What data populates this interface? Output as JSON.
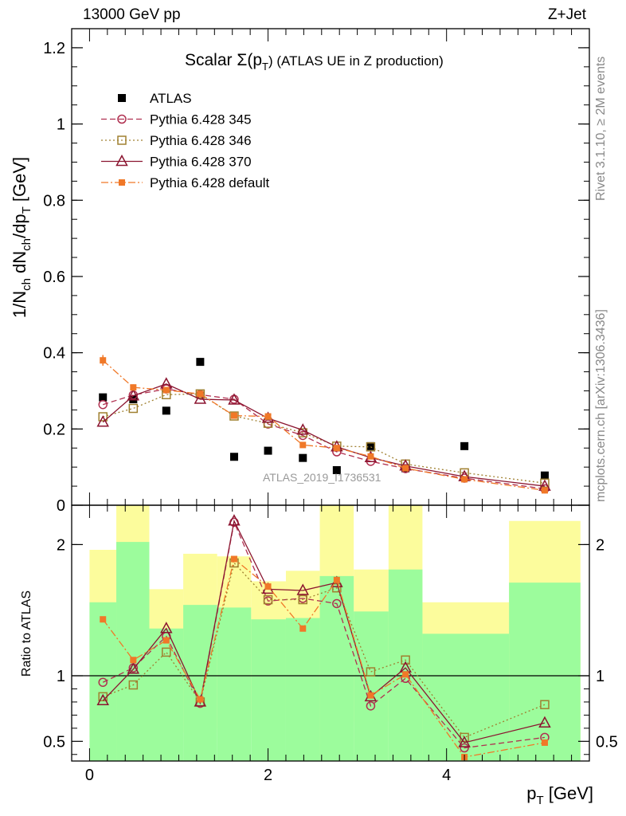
{
  "header": {
    "energy_label": "13000 GeV pp",
    "process_label": "Z+Jet"
  },
  "side_notes": {
    "rivet": "Rivet 3.1.10, ≥ 2M events",
    "mcplots": "mcplots.cern.ch [arXiv:1306.3436]"
  },
  "chart_data": [
    {
      "type": "scatter",
      "panel": "main",
      "title_main": "Scalar Σ(p",
      "title_sub": "T",
      "title_rest": ") (ATLAS UE in Z production)",
      "ylabel": "1/N_ch dN_ch/dp_T [GeV]",
      "watermark": "ATLAS_2019_I1736531",
      "xlim": [
        -0.2,
        5.6
      ],
      "ylim": [
        0,
        1.25
      ],
      "yticks": [
        0,
        0.2,
        0.4,
        0.6,
        0.8,
        1,
        1.2
      ],
      "ytick_labels": [
        "0",
        "0.2",
        "0.4",
        "0.6",
        "0.8",
        "1",
        "1.2"
      ],
      "x": [
        0.15,
        0.49,
        0.86,
        1.24,
        1.62,
        2.0,
        2.39,
        2.77,
        3.15,
        3.54,
        4.2,
        5.1
      ],
      "x_bin_edges": [
        0,
        0.3,
        0.67,
        1.05,
        1.43,
        1.81,
        2.2,
        2.58,
        2.96,
        3.35,
        3.73,
        4.7,
        5.5
      ],
      "legend_position": "top-left",
      "series": [
        {
          "name": "ATLAS",
          "color": "#000000",
          "marker": "square",
          "line": "none",
          "values": [
            0.283,
            0.278,
            0.248,
            0.376,
            0.127,
            0.143,
            0.124,
            0.092,
            0.155,
            0.097,
            0.155,
            0.078
          ]
        },
        {
          "name": "Pythia 6.428 345",
          "color": "#b03050",
          "marker": "circle-open",
          "line": "dashed",
          "values": [
            0.264,
            0.289,
            0.305,
            0.29,
            0.278,
            0.213,
            0.183,
            0.14,
            0.115,
            0.096,
            0.071,
            0.043
          ]
        },
        {
          "name": "Pythia 6.428 346",
          "color": "#a08030",
          "marker": "square-open",
          "line": "dotted",
          "values": [
            0.232,
            0.254,
            0.29,
            0.292,
            0.234,
            0.215,
            0.19,
            0.155,
            0.153,
            0.108,
            0.085,
            0.058
          ]
        },
        {
          "name": "Pythia 6.428 370",
          "color": "#8b1530",
          "marker": "triangle-open",
          "line": "solid",
          "values": [
            0.218,
            0.287,
            0.318,
            0.278,
            0.276,
            0.228,
            0.197,
            0.153,
            0.125,
            0.103,
            0.075,
            0.05
          ]
        },
        {
          "name": "Pythia 6.428 default",
          "color": "#f07828",
          "marker": "square-filled",
          "line": "dashdot",
          "values": [
            0.38,
            0.309,
            0.302,
            0.292,
            0.235,
            0.233,
            0.158,
            0.15,
            0.128,
            0.097,
            0.068,
            0.039
          ],
          "errors": [
            0.014,
            0.008,
            0.008,
            0.008,
            0.007,
            0.007,
            0.005,
            0.005,
            0.005,
            0.004,
            0.003,
            0.003
          ]
        }
      ]
    },
    {
      "type": "scatter",
      "panel": "ratio",
      "ylabel": "Ratio to ATLAS",
      "xlabel": "p_T [GeV]",
      "xlim": [
        -0.2,
        5.6
      ],
      "ylim": [
        0.35,
        2.3
      ],
      "yticks": [
        0.5,
        1,
        2
      ],
      "ytick_labels": [
        "0.5",
        "1",
        "2"
      ],
      "xticks": [
        0,
        2,
        4
      ],
      "xtick_labels": [
        "0",
        "2",
        "4"
      ],
      "reference_line": 1,
      "bands": {
        "green": {
          "color": "#9cfc9c",
          "low": [
            0.35,
            0.35,
            0.35,
            0.35,
            0.35,
            0.35,
            0.35,
            0.35,
            0.35,
            0.35,
            0.35,
            0.35
          ],
          "high": [
            1.56,
            2.02,
            1.36,
            1.54,
            1.52,
            1.43,
            1.44,
            1.76,
            1.49,
            1.81,
            1.32,
            1.71
          ]
        },
        "yellow": {
          "color": "#fcfc9c",
          "low": [
            0.53,
            0.35,
            0.76,
            0.57,
            0.6,
            0.73,
            0.68,
            0.35,
            0.65,
            0.35,
            0.81,
            0.35
          ],
          "high": [
            1.96,
            2.3,
            1.66,
            1.93,
            1.91,
            1.72,
            1.8,
            2.3,
            1.81,
            2.3,
            1.56,
            2.18
          ]
        }
      },
      "series": [
        {
          "name": "Pythia 6.428 345",
          "color": "#b03050",
          "marker": "circle-open",
          "line": "dashed",
          "values": [
            0.95,
            1.06,
            1.3,
            0.79,
            2.17,
            1.57,
            1.59,
            1.55,
            0.77,
            0.98,
            0.45,
            0.53
          ]
        },
        {
          "name": "Pythia 6.428 346",
          "color": "#a08030",
          "marker": "square-open",
          "line": "dotted",
          "values": [
            0.84,
            0.93,
            1.18,
            0.8,
            1.86,
            1.58,
            1.58,
            1.67,
            1.03,
            1.12,
            0.53,
            0.78
          ]
        },
        {
          "name": "Pythia 6.428 370",
          "color": "#8b1530",
          "marker": "triangle-open",
          "line": "solid",
          "values": [
            0.81,
            1.05,
            1.36,
            0.8,
            2.18,
            1.66,
            1.65,
            1.71,
            0.84,
            1.06,
            0.49,
            0.64
          ]
        },
        {
          "name": "Pythia 6.428 default",
          "color": "#f07828",
          "marker": "square-filled",
          "line": "dashdot",
          "values": [
            1.43,
            1.12,
            1.27,
            0.82,
            1.89,
            1.68,
            1.36,
            1.73,
            0.85,
            1.01,
            0.38,
            0.49
          ]
        }
      ]
    }
  ]
}
